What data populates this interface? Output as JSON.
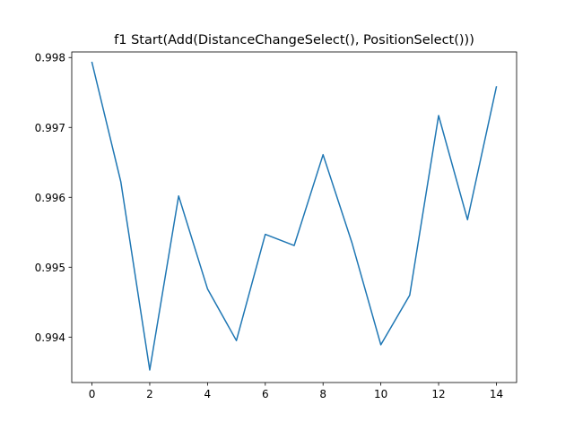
{
  "chart_data": {
    "type": "line",
    "title": "f1 Start(Add(DistanceChangeSelect(), PositionSelect()))",
    "xlabel": "",
    "ylabel": "",
    "grid": false,
    "legend": "none",
    "xlim": [
      -0.7,
      14.7
    ],
    "ylim": [
      0.99335,
      0.99808
    ],
    "x_ticks": [
      0,
      2,
      4,
      6,
      8,
      10,
      12,
      14
    ],
    "y_ticks": [
      0.994,
      0.995,
      0.996,
      0.997,
      0.998
    ],
    "y_tick_labels": [
      "0.994",
      "0.995",
      "0.996",
      "0.997",
      "0.998"
    ],
    "series": [
      {
        "color": "#1f77b4",
        "x": [
          0,
          1,
          2,
          3,
          4,
          5,
          6,
          7,
          8,
          9,
          10,
          11,
          12,
          13,
          14
        ],
        "values": [
          0.99793,
          0.99622,
          0.99353,
          0.99602,
          0.99469,
          0.99395,
          0.99547,
          0.99531,
          0.99661,
          0.99535,
          0.99389,
          0.9946,
          0.99717,
          0.99568,
          0.99758
        ]
      }
    ]
  }
}
